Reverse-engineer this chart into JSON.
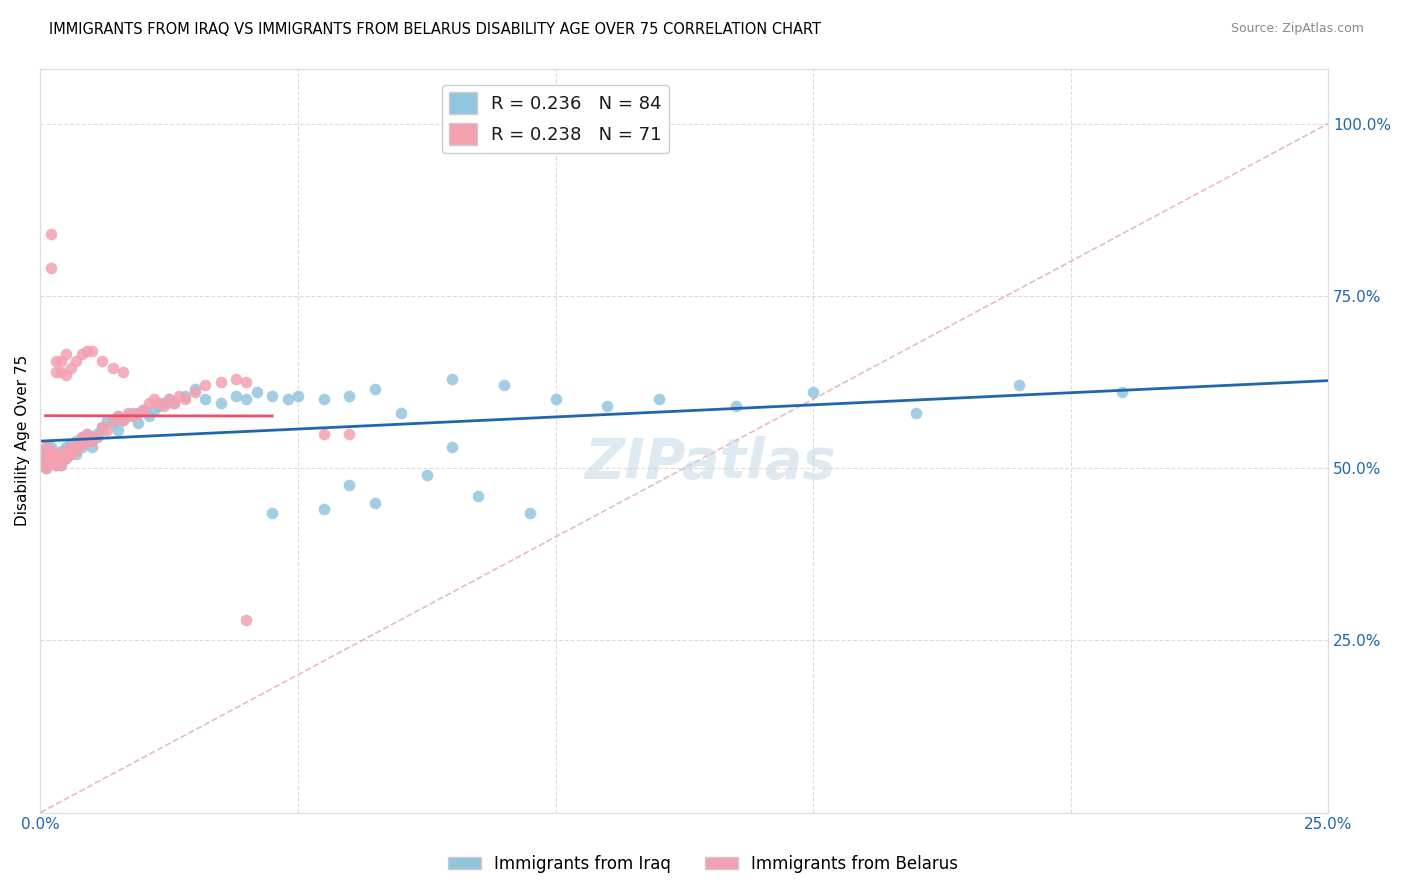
{
  "title": "IMMIGRANTS FROM IRAQ VS IMMIGRANTS FROM BELARUS DISABILITY AGE OVER 75 CORRELATION CHART",
  "source": "Source: ZipAtlas.com",
  "ylabel": "Disability Age Over 75",
  "xlim": [
    0.0,
    0.25
  ],
  "ylim": [
    0.0,
    1.08
  ],
  "ytick_labels": [
    "",
    "25.0%",
    "50.0%",
    "75.0%",
    "100.0%"
  ],
  "ytick_values": [
    0.0,
    0.25,
    0.5,
    0.75,
    1.0
  ],
  "xtick_labels": [
    "0.0%",
    "",
    "",
    "",
    "",
    "25.0%"
  ],
  "xtick_values": [
    0.0,
    0.05,
    0.1,
    0.15,
    0.2,
    0.25
  ],
  "legend_iraq_r": "0.236",
  "legend_iraq_n": "84",
  "legend_belarus_r": "0.238",
  "legend_belarus_n": "71",
  "color_iraq": "#92C5DE",
  "color_belarus": "#F4A0B0",
  "color_iraq_line": "#2166AC",
  "color_belarus_line": "#E8506A",
  "color_diag": "#D9A0A8",
  "watermark": "ZIPatlas",
  "iraq_x": [
    0.001,
    0.001,
    0.001,
    0.001,
    0.002,
    0.002,
    0.002,
    0.002,
    0.002,
    0.003,
    0.003,
    0.003,
    0.003,
    0.004,
    0.004,
    0.004,
    0.004,
    0.004,
    0.005,
    0.005,
    0.005,
    0.006,
    0.006,
    0.006,
    0.007,
    0.007,
    0.007,
    0.008,
    0.008,
    0.009,
    0.009,
    0.01,
    0.01,
    0.011,
    0.011,
    0.012,
    0.012,
    0.013,
    0.014,
    0.015,
    0.015,
    0.016,
    0.017,
    0.018,
    0.019,
    0.02,
    0.021,
    0.022,
    0.023,
    0.024,
    0.025,
    0.026,
    0.028,
    0.03,
    0.032,
    0.035,
    0.038,
    0.04,
    0.042,
    0.045,
    0.048,
    0.05,
    0.055,
    0.06,
    0.065,
    0.07,
    0.08,
    0.09,
    0.1,
    0.11,
    0.12,
    0.135,
    0.15,
    0.17,
    0.19,
    0.21,
    0.06,
    0.075,
    0.085,
    0.095,
    0.045,
    0.055,
    0.065,
    0.08
  ],
  "iraq_y": [
    0.52,
    0.5,
    0.51,
    0.53,
    0.515,
    0.52,
    0.525,
    0.53,
    0.52,
    0.505,
    0.51,
    0.52,
    0.505,
    0.515,
    0.505,
    0.52,
    0.525,
    0.51,
    0.52,
    0.515,
    0.53,
    0.52,
    0.525,
    0.535,
    0.54,
    0.53,
    0.52,
    0.545,
    0.53,
    0.55,
    0.54,
    0.545,
    0.53,
    0.55,
    0.545,
    0.56,
    0.555,
    0.57,
    0.565,
    0.575,
    0.555,
    0.57,
    0.575,
    0.58,
    0.565,
    0.585,
    0.575,
    0.585,
    0.59,
    0.595,
    0.6,
    0.595,
    0.605,
    0.615,
    0.6,
    0.595,
    0.605,
    0.6,
    0.61,
    0.605,
    0.6,
    0.605,
    0.6,
    0.605,
    0.615,
    0.58,
    0.63,
    0.62,
    0.6,
    0.59,
    0.6,
    0.59,
    0.61,
    0.58,
    0.62,
    0.61,
    0.475,
    0.49,
    0.46,
    0.435,
    0.435,
    0.44,
    0.45,
    0.53
  ],
  "belarus_x": [
    0.001,
    0.001,
    0.001,
    0.001,
    0.001,
    0.002,
    0.002,
    0.002,
    0.002,
    0.003,
    0.003,
    0.003,
    0.003,
    0.004,
    0.004,
    0.004,
    0.005,
    0.005,
    0.005,
    0.006,
    0.006,
    0.007,
    0.007,
    0.008,
    0.008,
    0.009,
    0.009,
    0.01,
    0.01,
    0.011,
    0.012,
    0.013,
    0.014,
    0.015,
    0.016,
    0.017,
    0.018,
    0.019,
    0.02,
    0.021,
    0.022,
    0.023,
    0.024,
    0.025,
    0.026,
    0.027,
    0.028,
    0.03,
    0.032,
    0.035,
    0.038,
    0.04,
    0.003,
    0.003,
    0.004,
    0.004,
    0.005,
    0.005,
    0.006,
    0.007,
    0.008,
    0.009,
    0.01,
    0.012,
    0.014,
    0.016,
    0.002,
    0.002,
    0.06,
    0.055,
    0.04
  ],
  "belarus_y": [
    0.52,
    0.5,
    0.515,
    0.505,
    0.53,
    0.52,
    0.525,
    0.51,
    0.52,
    0.51,
    0.52,
    0.505,
    0.515,
    0.52,
    0.515,
    0.505,
    0.525,
    0.52,
    0.515,
    0.53,
    0.52,
    0.535,
    0.525,
    0.545,
    0.535,
    0.55,
    0.54,
    0.545,
    0.54,
    0.545,
    0.56,
    0.555,
    0.57,
    0.575,
    0.57,
    0.58,
    0.575,
    0.58,
    0.585,
    0.595,
    0.6,
    0.595,
    0.59,
    0.6,
    0.595,
    0.605,
    0.6,
    0.61,
    0.62,
    0.625,
    0.63,
    0.625,
    0.655,
    0.64,
    0.64,
    0.655,
    0.665,
    0.635,
    0.645,
    0.655,
    0.665,
    0.67,
    0.67,
    0.655,
    0.645,
    0.64,
    0.79,
    0.84,
    0.55,
    0.55,
    0.28
  ]
}
